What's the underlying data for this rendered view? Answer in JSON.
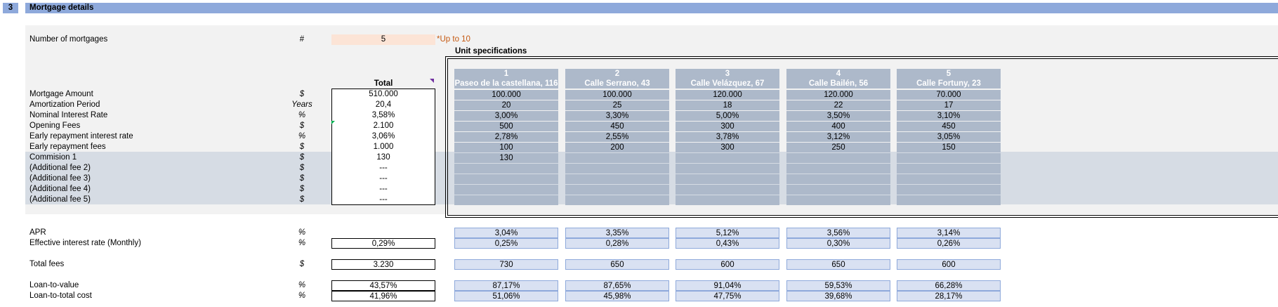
{
  "section": {
    "number": "3",
    "title": "Mortgage details"
  },
  "num_mortgages": {
    "label": "Number of mortgages",
    "unit": "#",
    "value": "5",
    "note": "*Up to 10"
  },
  "spec_title": "Unit specifications",
  "total_header": "Total",
  "rows": [
    {
      "label": "Mortgage Amount",
      "unit": "$",
      "total": "510.000",
      "values": [
        "100.000",
        "100.000",
        "120.000",
        "120.000",
        "70.000"
      ]
    },
    {
      "label": "Amortization Period",
      "unit": "Years",
      "total": "20,4",
      "values": [
        "20",
        "25",
        "18",
        "22",
        "17"
      ]
    },
    {
      "label": "Nominal Interest Rate",
      "unit": "%",
      "total": "3,58%",
      "values": [
        "3,00%",
        "3,30%",
        "5,00%",
        "3,50%",
        "3,10%"
      ]
    },
    {
      "label": "Opening Fees",
      "unit": "$",
      "total": "2.100",
      "values": [
        "500",
        "450",
        "300",
        "400",
        "450"
      ]
    },
    {
      "label": "Early repayment interest rate",
      "unit": "%",
      "total": "3,06%",
      "values": [
        "2,78%",
        "2,55%",
        "3,78%",
        "3,12%",
        "3,05%"
      ]
    },
    {
      "label": "Early repayment fees",
      "unit": "$",
      "total": "1.000",
      "values": [
        "100",
        "200",
        "300",
        "250",
        "150"
      ]
    },
    {
      "label": "Commision 1",
      "unit": "$",
      "total": "130",
      "values": [
        "130",
        "",
        "",
        "",
        ""
      ]
    },
    {
      "label": "(Additional fee 2)",
      "unit": "$",
      "total": "---",
      "values": [
        "",
        "",
        "",
        "",
        ""
      ]
    },
    {
      "label": "(Additional fee 3)",
      "unit": "$",
      "total": "---",
      "values": [
        "",
        "",
        "",
        "",
        ""
      ]
    },
    {
      "label": "(Additional fee 4)",
      "unit": "$",
      "total": "---",
      "values": [
        "",
        "",
        "",
        "",
        ""
      ]
    },
    {
      "label": "(Additional fee 5)",
      "unit": "$",
      "total": "---",
      "values": [
        "",
        "",
        "",
        "",
        ""
      ]
    }
  ],
  "units": [
    {
      "number": "1",
      "name": "Paseo de la castellana, 116"
    },
    {
      "number": "2",
      "name": "Calle Serrano, 43"
    },
    {
      "number": "3",
      "name": "Calle Velázquez, 67"
    },
    {
      "number": "4",
      "name": "Calle Bailén, 56"
    },
    {
      "number": "5",
      "name": "Calle Fortuny, 23"
    }
  ],
  "results": [
    {
      "label": "APR",
      "unit": "%",
      "total": "",
      "values": [
        "3,04%",
        "3,35%",
        "5,12%",
        "3,56%",
        "3,14%"
      ]
    },
    {
      "label": "Effective interest rate (Monthly)",
      "unit": "%",
      "total": "0,29%",
      "values": [
        "0,25%",
        "0,28%",
        "0,43%",
        "0,30%",
        "0,26%"
      ]
    },
    {
      "label": "Total fees",
      "unit": "$",
      "total": "3.230",
      "values": [
        "730",
        "650",
        "600",
        "650",
        "600"
      ]
    },
    {
      "label": "Loan-to-value",
      "unit": "%",
      "total": "43,57%",
      "values": [
        "87,17%",
        "87,65%",
        "91,04%",
        "59,53%",
        "66,28%"
      ]
    },
    {
      "label": "Loan-to-total cost",
      "unit": "%",
      "total": "41,96%",
      "values": [
        "51,06%",
        "45,98%",
        "47,75%",
        "39,68%",
        "28,17%"
      ]
    }
  ]
}
